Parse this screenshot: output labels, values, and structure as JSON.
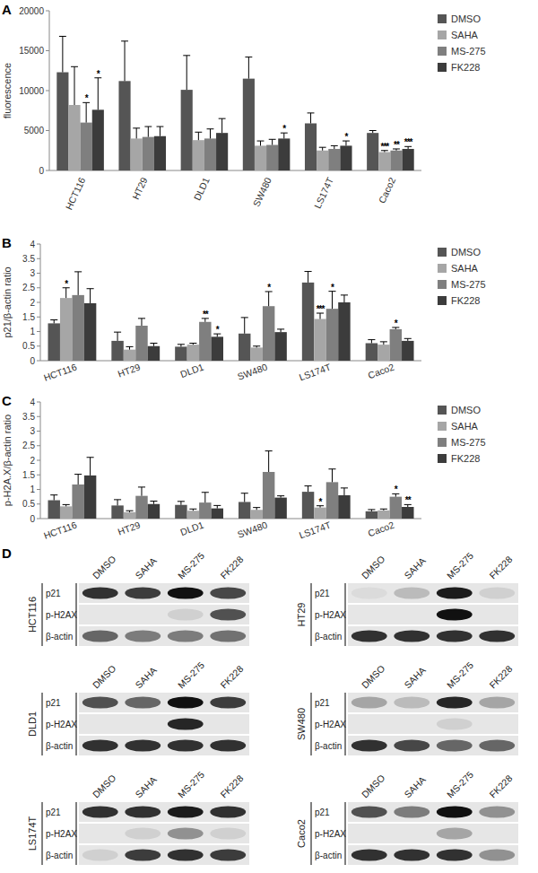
{
  "chart_data": [
    {
      "type": "bar",
      "panel_label": "A",
      "y_label": "fluorescence",
      "categories": [
        "HCT116",
        "HT29",
        "DLD1",
        "SW480",
        "LS174T",
        "Caco2"
      ],
      "ylim": [
        0,
        20000
      ],
      "yticks": [
        0,
        5000,
        10000,
        15000,
        20000
      ],
      "grid": false,
      "legend": "right",
      "series": [
        {
          "name": "DMSO",
          "color": "#555555",
          "values": [
            12300,
            11200,
            10100,
            11500,
            5900,
            4700
          ],
          "errors": [
            4500,
            5000,
            4300,
            2700,
            1300,
            300
          ],
          "significance": [
            null,
            null,
            null,
            null,
            null,
            null
          ]
        },
        {
          "name": "SAHA",
          "color": "#a6a6a6",
          "values": [
            8200,
            4000,
            3800,
            3100,
            2500,
            2300
          ],
          "errors": [
            4800,
            1300,
            1000,
            600,
            400,
            200
          ],
          "significance": [
            null,
            null,
            null,
            null,
            null,
            "***"
          ]
        },
        {
          "name": "MS-275",
          "color": "#7f7f7f",
          "values": [
            6000,
            4200,
            4000,
            3200,
            2700,
            2500
          ],
          "errors": [
            2500,
            1300,
            1200,
            700,
            400,
            200
          ],
          "significance": [
            "*",
            null,
            null,
            null,
            null,
            "**"
          ]
        },
        {
          "name": "FK228",
          "color": "#3c3c3c",
          "values": [
            7600,
            4300,
            4700,
            4000,
            3100,
            2700
          ],
          "errors": [
            4000,
            1200,
            1800,
            700,
            600,
            300
          ],
          "significance": [
            "*",
            null,
            null,
            "*",
            "*",
            "***"
          ]
        }
      ]
    },
    {
      "type": "bar",
      "panel_label": "B",
      "y_label": "p21/β-actin ratio",
      "categories": [
        "HCT116",
        "HT29",
        "DLD1",
        "SW480",
        "LS174T",
        "Caco2"
      ],
      "ylim": [
        0,
        4
      ],
      "yticks": [
        0,
        0.5,
        1,
        1.5,
        2,
        2.5,
        3,
        3.5,
        4
      ],
      "grid": false,
      "legend": "right",
      "series": [
        {
          "name": "DMSO",
          "color": "#555555",
          "values": [
            1.28,
            0.68,
            0.48,
            0.93,
            2.68,
            0.6
          ],
          "errors": [
            0.12,
            0.3,
            0.08,
            0.55,
            0.38,
            0.12
          ],
          "significance": [
            null,
            null,
            null,
            null,
            null,
            null
          ]
        },
        {
          "name": "SAHA",
          "color": "#a6a6a6",
          "values": [
            2.15,
            0.38,
            0.55,
            0.45,
            1.43,
            0.55
          ],
          "errors": [
            0.35,
            0.1,
            0.05,
            0.05,
            0.2,
            0.1
          ],
          "significance": [
            "*",
            null,
            null,
            null,
            "***",
            null
          ]
        },
        {
          "name": "MS-275",
          "color": "#7f7f7f",
          "values": [
            2.25,
            1.2,
            1.33,
            1.87,
            1.78,
            1.08
          ],
          "errors": [
            0.8,
            0.25,
            0.12,
            0.5,
            0.6,
            0.06
          ],
          "significance": [
            null,
            null,
            "**",
            "*",
            "*",
            "*"
          ]
        },
        {
          "name": "FK228",
          "color": "#3c3c3c",
          "values": [
            1.97,
            0.5,
            0.82,
            0.98,
            2.0,
            0.68
          ],
          "errors": [
            0.5,
            0.1,
            0.1,
            0.1,
            0.25,
            0.08
          ],
          "significance": [
            null,
            null,
            "*",
            null,
            null,
            null
          ]
        }
      ]
    },
    {
      "type": "bar",
      "panel_label": "C",
      "y_label": "p-H2A.X/β-actin ratio",
      "categories": [
        "HCT116",
        "HT29",
        "DLD1",
        "SW480",
        "LS174T",
        "Caco2"
      ],
      "ylim": [
        0,
        4
      ],
      "yticks": [
        0,
        0.5,
        1,
        1.5,
        2,
        2.5,
        3,
        3.5,
        4
      ],
      "grid": false,
      "legend": "right",
      "series": [
        {
          "name": "DMSO",
          "color": "#555555",
          "values": [
            0.63,
            0.45,
            0.47,
            0.57,
            0.92,
            0.25
          ],
          "errors": [
            0.18,
            0.2,
            0.12,
            0.3,
            0.2,
            0.06
          ],
          "significance": [
            null,
            null,
            null,
            null,
            null,
            null
          ]
        },
        {
          "name": "SAHA",
          "color": "#a6a6a6",
          "values": [
            0.42,
            0.22,
            0.27,
            0.3,
            0.38,
            0.28
          ],
          "errors": [
            0.06,
            0.05,
            0.06,
            0.08,
            0.06,
            0.05
          ],
          "significance": [
            null,
            null,
            null,
            null,
            "*",
            null
          ]
        },
        {
          "name": "MS-275",
          "color": "#7f7f7f",
          "values": [
            1.17,
            0.78,
            0.55,
            1.6,
            1.25,
            0.75
          ],
          "errors": [
            0.35,
            0.3,
            0.35,
            0.72,
            0.45,
            0.1
          ],
          "significance": [
            null,
            null,
            null,
            null,
            null,
            "*"
          ]
        },
        {
          "name": "FK228",
          "color": "#3c3c3c",
          "values": [
            1.48,
            0.5,
            0.35,
            0.72,
            0.8,
            0.4
          ],
          "errors": [
            0.62,
            0.1,
            0.1,
            0.06,
            0.25,
            0.08
          ],
          "significance": [
            null,
            null,
            null,
            null,
            null,
            "**"
          ]
        }
      ]
    }
  ],
  "blots": {
    "panel_label": "D",
    "lanes": [
      "DMSO",
      "SAHA",
      "MS-275",
      "FK228"
    ],
    "proteins": [
      "p21",
      "p-H2AX",
      "β-actin"
    ],
    "panels": [
      {
        "cell_line": "HCT116",
        "bands": [
          [
            0.85,
            0.8,
            1,
            0.75
          ],
          [
            0,
            0,
            0.1,
            0.7
          ],
          [
            0.6,
            0.5,
            0.5,
            0.55
          ]
        ]
      },
      {
        "cell_line": "HT29",
        "bands": [
          [
            0.05,
            0.2,
            0.95,
            0.1
          ],
          [
            0,
            0,
            1,
            0
          ],
          [
            0.85,
            0.85,
            0.85,
            0.85
          ]
        ]
      },
      {
        "cell_line": "DLD1",
        "bands": [
          [
            0.7,
            0.6,
            1,
            0.8
          ],
          [
            0,
            0,
            0.9,
            0
          ],
          [
            0.85,
            0.85,
            0.85,
            0.85
          ]
        ]
      },
      {
        "cell_line": "SW480",
        "bands": [
          [
            0.3,
            0.2,
            0.9,
            0.3
          ],
          [
            0,
            0,
            0.1,
            0
          ],
          [
            0.85,
            0.75,
            0.6,
            0.6
          ]
        ]
      },
      {
        "cell_line": "LS174T",
        "bands": [
          [
            0.85,
            0.85,
            0.95,
            0.85
          ],
          [
            0,
            0.1,
            0.4,
            0.1
          ],
          [
            0.1,
            0.8,
            0.85,
            0.8
          ]
        ]
      },
      {
        "cell_line": "Caco2",
        "bands": [
          [
            0.7,
            0.5,
            1,
            0.4
          ],
          [
            0,
            0,
            0.3,
            0
          ],
          [
            0.85,
            0.85,
            0.85,
            0.4
          ]
        ]
      }
    ]
  }
}
